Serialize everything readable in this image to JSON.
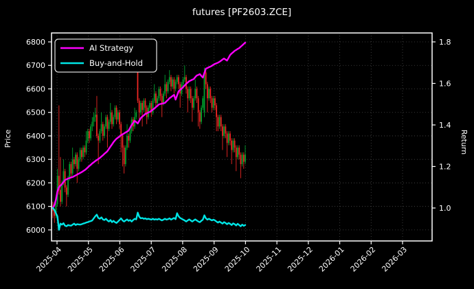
{
  "window": {
    "title": "futures [PF2603.ZCE]"
  },
  "chart_data": {
    "type": "candlestick",
    "title": "futures [PF2603.ZCE]",
    "grid": true,
    "legend_position": "top-left",
    "colors": {
      "background": "#000000",
      "text": "#ffffff",
      "grid": "#4a4a4a",
      "spine": "#ffffff",
      "candle_up": "#00a42e",
      "candle_down": "#ef2724",
      "ai_strategy": "#ff00ff",
      "buy_and_hold": "#00e5e5"
    },
    "legend": [
      {
        "label": "AI Strategy",
        "color": "#ff00ff"
      },
      {
        "label": "Buy-and-Hold",
        "color": "#00e5e5"
      }
    ],
    "x_axis": {
      "tick_labels": [
        "2025-04",
        "2025-05",
        "2025-06",
        "2025-07",
        "2025-08",
        "2025-09",
        "2025-10",
        "2025-11",
        "2025-12",
        "2026-01",
        "2026-02",
        "2026-03"
      ]
    },
    "left_axis": {
      "label": "Price",
      "ticks": [
        6000,
        6100,
        6200,
        6300,
        6400,
        6500,
        6600,
        6700,
        6800
      ],
      "range": [
        5953,
        6838
      ]
    },
    "right_axis": {
      "label": "Return",
      "ticks": [
        1.0,
        1.2,
        1.4,
        1.6,
        1.8
      ],
      "tick_labels": [
        "1.0",
        "1.2",
        "1.4",
        "1.6",
        "1.8"
      ],
      "range": [
        0.8413,
        1.843
      ]
    },
    "candles": [
      [
        6100,
        6120,
        6050,
        6080
      ],
      [
        6080,
        6090,
        6030,
        6060
      ],
      [
        6060,
        6130,
        6050,
        6110
      ],
      [
        6110,
        6260,
        6100,
        6230
      ],
      [
        6230,
        6530,
        6150,
        6170
      ],
      [
        6170,
        6310,
        6100,
        6120
      ],
      [
        6120,
        6210,
        6110,
        6200
      ],
      [
        6200,
        6300,
        6190,
        6250
      ],
      [
        6250,
        6260,
        6160,
        6180
      ],
      [
        6180,
        6190,
        6100,
        6150
      ],
      [
        6150,
        6230,
        6140,
        6220
      ],
      [
        6220,
        6290,
        6210,
        6280
      ],
      [
        6280,
        6290,
        6220,
        6240
      ],
      [
        6240,
        6350,
        6230,
        6300
      ],
      [
        6300,
        6310,
        6260,
        6280
      ],
      [
        6280,
        6330,
        6270,
        6320
      ],
      [
        6320,
        6330,
        6200,
        6260
      ],
      [
        6260,
        6310,
        6250,
        6300
      ],
      [
        6300,
        6350,
        6290,
        6340
      ],
      [
        6340,
        6350,
        6290,
        6310
      ],
      [
        6310,
        6360,
        6300,
        6350
      ],
      [
        6350,
        6360,
        6310,
        6330
      ],
      [
        6330,
        6420,
        6320,
        6380
      ],
      [
        6380,
        6430,
        6370,
        6420
      ],
      [
        6420,
        6430,
        6370,
        6390
      ],
      [
        6390,
        6450,
        6380,
        6440
      ],
      [
        6440,
        6480,
        6420,
        6460
      ],
      [
        6460,
        6500,
        6440,
        6480
      ],
      [
        6480,
        6520,
        6460,
        6490
      ],
      [
        6490,
        6570,
        6390,
        6400
      ],
      [
        6400,
        6410,
        6280,
        6380
      ],
      [
        6380,
        6430,
        6370,
        6420
      ],
      [
        6420,
        6500,
        6410,
        6450
      ],
      [
        6450,
        6460,
        6380,
        6400
      ],
      [
        6400,
        6450,
        6390,
        6440
      ],
      [
        6440,
        6490,
        6430,
        6480
      ],
      [
        6480,
        6490,
        6350,
        6430
      ],
      [
        6430,
        6470,
        6420,
        6460
      ],
      [
        6460,
        6540,
        6450,
        6500
      ],
      [
        6500,
        6510,
        6430,
        6450
      ],
      [
        6450,
        6490,
        6440,
        6480
      ],
      [
        6480,
        6530,
        6470,
        6520
      ],
      [
        6520,
        6530,
        6450,
        6470
      ],
      [
        6470,
        6510,
        6460,
        6500
      ],
      [
        6500,
        6510,
        6430,
        6450
      ],
      [
        6450,
        6460,
        6330,
        6400
      ],
      [
        6400,
        6410,
        6270,
        6350
      ],
      [
        6350,
        6360,
        6240,
        6280
      ],
      [
        6280,
        6360,
        6270,
        6350
      ],
      [
        6350,
        6450,
        6340,
        6400
      ],
      [
        6400,
        6410,
        6350,
        6380
      ],
      [
        6380,
        6430,
        6370,
        6420
      ],
      [
        6420,
        6480,
        6410,
        6470
      ],
      [
        6470,
        6480,
        6420,
        6440
      ],
      [
        6440,
        6520,
        6430,
        6480
      ],
      [
        6480,
        6510,
        6470,
        6500
      ],
      [
        6680,
        6700,
        6540,
        6550
      ],
      [
        6550,
        6560,
        6470,
        6500
      ],
      [
        6500,
        6550,
        6490,
        6540
      ],
      [
        6540,
        6550,
        6440,
        6510
      ],
      [
        6510,
        6560,
        6500,
        6550
      ],
      [
        6550,
        6560,
        6490,
        6520
      ],
      [
        6520,
        6530,
        6450,
        6480
      ],
      [
        6480,
        6530,
        6470,
        6520
      ],
      [
        6520,
        6550,
        6510,
        6540
      ],
      [
        6540,
        6550,
        6480,
        6500
      ],
      [
        6500,
        6560,
        6490,
        6550
      ],
      [
        6550,
        6620,
        6540,
        6580
      ],
      [
        6580,
        6590,
        6520,
        6540
      ],
      [
        6540,
        6570,
        6530,
        6560
      ],
      [
        6560,
        6610,
        6550,
        6600
      ],
      [
        6600,
        6610,
        6550,
        6570
      ],
      [
        6570,
        6580,
        6480,
        6540
      ],
      [
        6540,
        6590,
        6530,
        6580
      ],
      [
        6580,
        6660,
        6570,
        6620
      ],
      [
        6620,
        6630,
        6560,
        6590
      ],
      [
        6590,
        6640,
        6580,
        6630
      ],
      [
        6630,
        6680,
        6620,
        6650
      ],
      [
        6650,
        6660,
        6590,
        6610
      ],
      [
        6610,
        6650,
        6600,
        6640
      ],
      [
        6640,
        6650,
        6580,
        6600
      ],
      [
        6600,
        6640,
        6590,
        6630
      ],
      [
        6630,
        6660,
        6620,
        6650
      ],
      [
        6650,
        6660,
        6600,
        6620
      ],
      [
        6620,
        6630,
        6520,
        6580
      ],
      [
        6580,
        6630,
        6570,
        6620
      ],
      [
        6620,
        6650,
        6610,
        6640
      ],
      [
        6640,
        6700,
        6630,
        6650
      ],
      [
        6650,
        6660,
        6580,
        6600
      ],
      [
        6600,
        6610,
        6500,
        6560
      ],
      [
        6560,
        6610,
        6550,
        6600
      ],
      [
        6600,
        6610,
        6540,
        6560
      ],
      [
        6560,
        6570,
        6460,
        6520
      ],
      [
        6520,
        6570,
        6510,
        6560
      ],
      [
        6560,
        6640,
        6550,
        6600
      ],
      [
        6600,
        6610,
        6540,
        6560
      ],
      [
        6560,
        6570,
        6440,
        6500
      ],
      [
        6500,
        6510,
        6430,
        6460
      ],
      [
        6460,
        6530,
        6450,
        6520
      ],
      [
        6520,
        6570,
        6510,
        6560
      ],
      [
        6500,
        6690,
        6480,
        6670
      ],
      [
        6670,
        6680,
        6600,
        6620
      ],
      [
        6620,
        6630,
        6500,
        6560
      ],
      [
        6560,
        6610,
        6550,
        6600
      ],
      [
        6600,
        6610,
        6540,
        6560
      ],
      [
        6560,
        6570,
        6500,
        6520
      ],
      [
        6520,
        6570,
        6510,
        6560
      ],
      [
        6560,
        6570,
        6510,
        6530
      ],
      [
        6530,
        6540,
        6420,
        6480
      ],
      [
        6480,
        6490,
        6420,
        6440
      ],
      [
        6440,
        6490,
        6430,
        6480
      ],
      [
        6480,
        6490,
        6420,
        6440
      ],
      [
        6440,
        6450,
        6340,
        6400
      ],
      [
        6400,
        6450,
        6390,
        6440
      ],
      [
        6440,
        6450,
        6390,
        6410
      ],
      [
        6410,
        6420,
        6310,
        6370
      ],
      [
        6370,
        6420,
        6360,
        6410
      ],
      [
        6410,
        6420,
        6360,
        6380
      ],
      [
        6380,
        6390,
        6280,
        6340
      ],
      [
        6340,
        6390,
        6330,
        6380
      ],
      [
        6380,
        6390,
        6330,
        6350
      ],
      [
        6350,
        6360,
        6250,
        6310
      ],
      [
        6310,
        6360,
        6300,
        6350
      ],
      [
        6350,
        6360,
        6300,
        6320
      ],
      [
        6320,
        6330,
        6220,
        6280
      ],
      [
        6280,
        6330,
        6270,
        6320
      ],
      [
        6320,
        6330,
        6260,
        6290
      ],
      [
        6290,
        6360,
        6280,
        6320
      ]
    ],
    "series": [
      {
        "name": "AI Strategy",
        "axis": "return",
        "color": "#ff00ff",
        "values": [
          1.0,
          1.015,
          1.04,
          1.08,
          1.1,
          1.108,
          1.115,
          1.125,
          1.135,
          1.138,
          1.142,
          1.144,
          1.147,
          1.149,
          1.153,
          1.157,
          1.161,
          1.165,
          1.169,
          1.173,
          1.178,
          1.182,
          1.188,
          1.195,
          1.202,
          1.208,
          1.215,
          1.22,
          1.226,
          1.231,
          1.236,
          1.241,
          1.248,
          1.254,
          1.261,
          1.267,
          1.274,
          1.285,
          1.296,
          1.306,
          1.317,
          1.326,
          1.334,
          1.339,
          1.345,
          1.35,
          1.355,
          1.359,
          1.364,
          1.368,
          1.373,
          1.386,
          1.4,
          1.41,
          1.42,
          1.414,
          1.407,
          1.42,
          1.433,
          1.44,
          1.446,
          1.453,
          1.456,
          1.46,
          1.463,
          1.468,
          1.474,
          1.479,
          1.486,
          1.492,
          1.499,
          1.501,
          1.502,
          1.504,
          1.506,
          1.514,
          1.521,
          1.529,
          1.534,
          1.54,
          1.545,
          1.522,
          1.542,
          1.562,
          1.569,
          1.575,
          1.582,
          1.59,
          1.598,
          1.604,
          1.611,
          1.614,
          1.618,
          1.621,
          1.63,
          1.638,
          1.641,
          1.645,
          1.636,
          1.628,
          1.65,
          1.671,
          1.674,
          1.678,
          1.681,
          1.685,
          1.69,
          1.694,
          1.697,
          1.7,
          1.704,
          1.709,
          1.715,
          1.72,
          1.715,
          1.71,
          1.723,
          1.737,
          1.744,
          1.75,
          1.757,
          1.761,
          1.766,
          1.77,
          1.777,
          1.783,
          1.79,
          1.796
        ]
      },
      {
        "name": "Buy-and-Hold",
        "axis": "return",
        "color": "#00e5e5",
        "values": [
          1.0,
          0.99,
          0.975,
          0.96,
          0.895,
          0.925,
          0.92,
          0.927,
          0.915,
          0.912,
          0.918,
          0.916,
          0.915,
          0.92,
          0.925,
          0.918,
          0.922,
          0.921,
          0.92,
          0.922,
          0.925,
          0.927,
          0.93,
          0.932,
          0.935,
          0.937,
          0.94,
          0.95,
          0.96,
          0.968,
          0.952,
          0.948,
          0.955,
          0.945,
          0.942,
          0.948,
          0.94,
          0.935,
          0.942,
          0.932,
          0.938,
          0.932,
          0.928,
          0.935,
          0.942,
          0.95,
          0.94,
          0.935,
          0.94,
          0.945,
          0.938,
          0.942,
          0.935,
          0.942,
          0.948,
          0.945,
          0.978,
          0.958,
          0.95,
          0.952,
          0.948,
          0.95,
          0.946,
          0.948,
          0.946,
          0.944,
          0.948,
          0.944,
          0.946,
          0.944,
          0.948,
          0.944,
          0.94,
          0.944,
          0.948,
          0.944,
          0.946,
          0.95,
          0.944,
          0.948,
          0.952,
          0.946,
          0.975,
          0.96,
          0.952,
          0.948,
          0.944,
          0.94,
          0.935,
          0.94,
          0.945,
          0.94,
          0.935,
          0.94,
          0.945,
          0.94,
          0.935,
          0.932,
          0.938,
          0.944,
          0.965,
          0.95,
          0.944,
          0.948,
          0.944,
          0.94,
          0.944,
          0.94,
          0.935,
          0.93,
          0.935,
          0.93,
          0.925,
          0.932,
          0.928,
          0.922,
          0.928,
          0.924,
          0.918,
          0.926,
          0.922,
          0.916,
          0.924,
          0.918,
          0.912,
          0.92,
          0.914,
          0.918
        ]
      }
    ]
  }
}
